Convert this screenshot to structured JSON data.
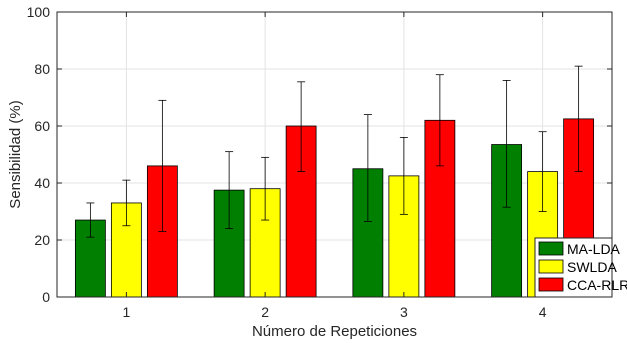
{
  "chart_data": {
    "type": "bar",
    "title": "",
    "xlabel": "Número de Repeticiones",
    "ylabel": "Sensibilidad (%)",
    "categories": [
      "1",
      "2",
      "3",
      "4"
    ],
    "ylim": [
      0,
      100
    ],
    "yticks": [
      0,
      20,
      40,
      60,
      80,
      100
    ],
    "grid": true,
    "legend_position": "bottom-right",
    "series": [
      {
        "name": "MA-LDA",
        "color": "#007f00",
        "values": [
          27,
          37.5,
          45,
          53.5
        ],
        "error_low": [
          21,
          24,
          26.5,
          31.5
        ],
        "error_high": [
          33,
          51,
          64,
          76
        ]
      },
      {
        "name": "SWLDA",
        "color": "#ffff00",
        "values": [
          33,
          38,
          42.5,
          44
        ],
        "error_low": [
          25,
          27,
          29,
          30
        ],
        "error_high": [
          41,
          49,
          56,
          58
        ]
      },
      {
        "name": "CCA-RLR",
        "color": "#ff0000",
        "values": [
          46,
          60,
          62,
          62.5
        ],
        "error_low": [
          23,
          44,
          46,
          44
        ],
        "error_high": [
          69,
          75.5,
          78,
          81
        ]
      }
    ]
  }
}
